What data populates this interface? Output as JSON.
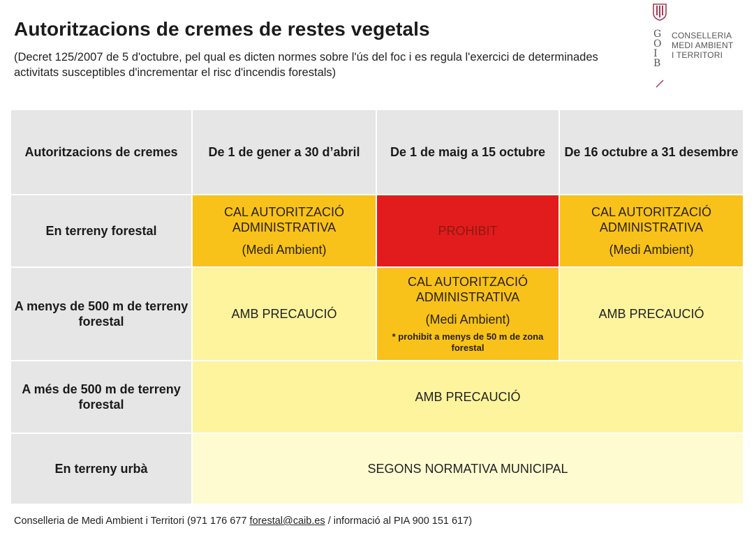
{
  "header": {
    "title": "Autoritzacions de cremes de restes vegetals",
    "subtitle": "(Decret 125/2007 de 5 d'octubre, pel qual es dicten normes sobre l'ús del foc i es regula l'exercici de determinades activitats susceptibles d'incrementar el risc d'incendis forestals)"
  },
  "logo": {
    "letters": [
      "G",
      "O",
      "I",
      "B"
    ],
    "lines": [
      "CONSELLERIA",
      "MEDI AMBIENT",
      "I TERRITORI"
    ]
  },
  "table": {
    "headers": [
      "Autoritzacions de cremes",
      "De 1 de gener a 30 d’abril",
      "De 1 de maig a 15 octubre",
      "De 16 octubre a 31 desembre"
    ],
    "rows": [
      {
        "label": "En terreny forestal",
        "cells": [
          {
            "main": "CAL AUTORITZACIÓ ADMINISTRATIVA",
            "sub": "(Medi Ambient)"
          },
          {
            "main": "PROHIBIT"
          },
          {
            "main": "CAL AUTORITZACIÓ ADMINISTRATIVA",
            "sub": "(Medi Ambient)"
          }
        ]
      },
      {
        "label": "A menys de 500 m de terreny forestal",
        "cells": [
          {
            "main": "AMB PRECAUCIÓ"
          },
          {
            "main": "CAL AUTORITZACIÓ ADMINISTRATIVA",
            "sub": "(Medi Ambient)",
            "note": "* prohibit a menys de 50 m de zona forestal"
          },
          {
            "main": "AMB PRECAUCIÓ"
          }
        ]
      },
      {
        "label": "A més de 500 m de terreny forestal",
        "cells": [
          {
            "main": "AMB PRECAUCIÓ"
          }
        ]
      },
      {
        "label": "En terreny urbà",
        "cells": [
          {
            "main": "SEGONS NORMATIVA MUNICIPAL"
          }
        ]
      }
    ]
  },
  "footer": {
    "prefix": "Conselleria de Medi Ambient i Territori (971 176 677 ",
    "email": "forestal@caib.es",
    "suffix": " / informació al PIA 900 151 617)"
  },
  "colors": {
    "header_gray": "#e6e6e6",
    "authorization_orange": "#f8c21a",
    "prohibited_red": "#e21c1c",
    "caution_yellow": "#fdf49d",
    "urban_pale": "#fefbd0"
  }
}
